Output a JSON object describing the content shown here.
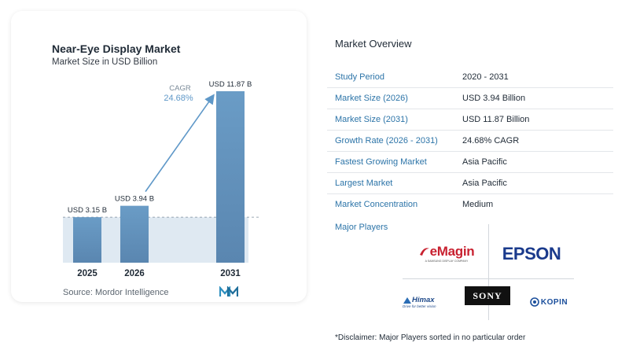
{
  "chart": {
    "title": "Near-Eye Display Market",
    "subtitle": "Market Size in USD Billion",
    "cagr_label": "CAGR",
    "cagr_value": "24.68%",
    "source": "Source: Mordor Intelligence"
  },
  "chart_data": {
    "type": "bar",
    "categories": [
      "2025",
      "2026",
      "2031"
    ],
    "values": [
      3.15,
      3.94,
      11.87
    ],
    "data_labels": [
      "USD 3.15 B",
      "USD 3.94 B",
      "USD 11.87 B"
    ],
    "title": "Near-Eye Display Market",
    "subtitle": "Market Size in USD Billion",
    "xlabel": "",
    "ylabel": "",
    "ylim": [
      0,
      11.87
    ],
    "grid": false,
    "annotation": "CAGR 24.68%",
    "colors": {
      "bar_top": "#6a9cc6",
      "bar_bottom": "#5a86b0",
      "band": "#dfe9f2",
      "arrow": "#5f98c8"
    }
  },
  "overview": {
    "title": "Market Overview",
    "rows": [
      {
        "label": "Study Period",
        "value": "2020 - 2031"
      },
      {
        "label": "Market Size (2026)",
        "value": "USD 3.94 Billion"
      },
      {
        "label": "Market Size (2031)",
        "value": "USD 11.87 Billion"
      },
      {
        "label": "Growth Rate (2026 - 2031)",
        "value": "24.68% CAGR"
      },
      {
        "label": "Fastest Growing Market",
        "value": "Asia Pacific"
      },
      {
        "label": "Largest Market",
        "value": "Asia Pacific"
      },
      {
        "label": "Market Concentration",
        "value": "Medium"
      }
    ]
  },
  "players": {
    "label": "Major Players",
    "emagin": "eMagin",
    "emagin_sub": "A SAMSUNG DISPLAY COMPANY",
    "epson": "EPSON",
    "himax": "Himax",
    "himax_sub": "Drive for better vision",
    "sony": "SONY",
    "kopin": "KOPIN"
  },
  "disclaimer": "*Disclaimer: Major Players sorted in no particular order",
  "colors": {
    "accent": "#2c74a8",
    "text": "#1f2a36"
  }
}
